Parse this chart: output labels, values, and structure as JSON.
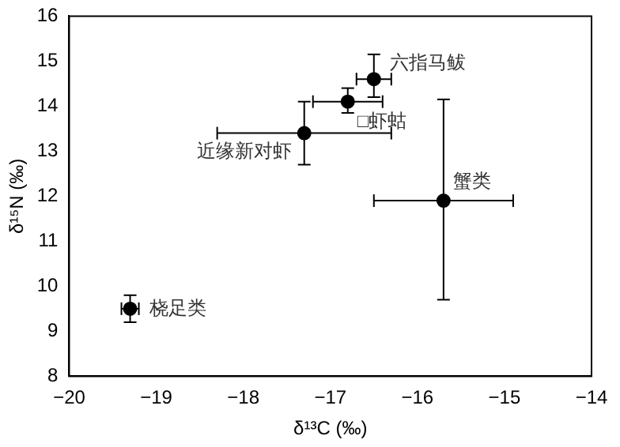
{
  "chart_data": {
    "type": "scatter",
    "xlabel": "δ¹³C (‰)",
    "ylabel": "δ¹⁵N (‰)",
    "x": [
      -19.3,
      -17.3,
      -16.8,
      -16.5,
      -15.7
    ],
    "series": [
      {
        "color": "#000000",
        "values": [
          9.5,
          13.4,
          14.1,
          14.6,
          11.9
        ],
        "errors": [
          [
            9.2,
            9.8
          ],
          [
            12.7,
            14.1
          ],
          [
            13.85,
            14.4
          ],
          [
            14.2,
            15.15
          ],
          [
            9.7,
            14.15
          ]
        ],
        "xerrors": [
          [
            -19.4,
            -19.2
          ],
          [
            -18.3,
            -16.3
          ],
          [
            -17.2,
            -16.4
          ],
          [
            -16.7,
            -16.3
          ],
          [
            -16.5,
            -14.9
          ]
        ]
      }
    ],
    "annotations": [
      {
        "text": "桡足类",
        "x": -19.3,
        "y": 9.5
      },
      {
        "text": "近缘新对虾",
        "x": -17.3,
        "y": 13.4
      },
      {
        "text": "□虾蛄",
        "x": -16.8,
        "y": 14.1
      },
      {
        "text": "六指马鲅",
        "x": -16.5,
        "y": 14.6
      },
      {
        "text": "蟹类",
        "x": -15.7,
        "y": 11.9
      }
    ],
    "xlim": [
      -20,
      -14
    ],
    "xticks": [
      -20,
      -19,
      -18,
      -17,
      -16,
      -15,
      -14
    ],
    "ylim": [
      8,
      16
    ],
    "yticks": [
      8,
      9,
      10,
      11,
      12,
      13,
      14,
      15,
      16
    ],
    "grid": false,
    "legend": false,
    "marker": "circle"
  }
}
